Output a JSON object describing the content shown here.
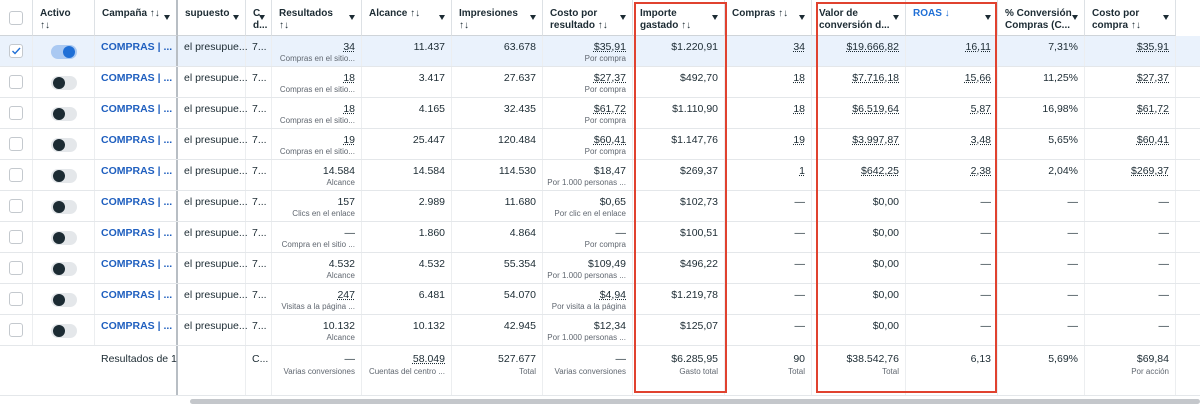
{
  "table": {
    "header": {
      "columns": [
        {
          "lines": [
            "Activo",
            "↑↓"
          ]
        },
        {
          "lines": [
            "Campaña ↑↓"
          ]
        },
        {
          "lines": [
            "supuesto"
          ]
        },
        {
          "lines": [
            "C",
            "d..."
          ]
        },
        {
          "lines": [
            "Resultados",
            "↑↓"
          ]
        },
        {
          "lines": [
            "Alcance ↑↓"
          ]
        },
        {
          "lines": [
            "Impresiones",
            "↑↓"
          ]
        },
        {
          "lines": [
            "Costo por",
            "resultado ↑↓"
          ]
        },
        {
          "lines": [
            "Importe",
            "gastado ↑↓"
          ]
        },
        {
          "lines": [
            "Compras ↑↓"
          ]
        },
        {
          "lines": [
            "Valor de",
            "conversión d..."
          ]
        },
        {
          "lines": [
            "ROAS ↓"
          ]
        },
        {
          "lines": [
            "% Conversión",
            "Compras (C..."
          ]
        },
        {
          "lines": [
            "Costo por",
            "compra ↑↓"
          ]
        }
      ]
    },
    "rows": [
      {
        "selected": true,
        "active": true,
        "campaign": "COMPRAS | ...",
        "budget": "el presupue...",
        "bid": "7...",
        "results": "34",
        "results_note": "Compras en el sitio...",
        "reach": "11.437",
        "impressions": "63.678",
        "cost_per_result": "$35,91",
        "cost_note": "Por compra",
        "spent": "$1.220,91",
        "purchases": "34",
        "conv_value": "$19.666,82",
        "roas": "16,11",
        "conv_rate": "7,31%",
        "cost_per_purchase": "$35,91"
      },
      {
        "selected": false,
        "active": false,
        "campaign": "COMPRAS | ...",
        "budget": "el presupue...",
        "bid": "7...",
        "results": "18",
        "results_note": "Compras en el sitio...",
        "reach": "3.417",
        "impressions": "27.637",
        "cost_per_result": "$27,37",
        "cost_note": "Por compra",
        "spent": "$492,70",
        "purchases": "18",
        "conv_value": "$7.716,18",
        "roas": "15,66",
        "conv_rate": "11,25%",
        "cost_per_purchase": "$27,37"
      },
      {
        "selected": false,
        "active": false,
        "campaign": "COMPRAS | ...",
        "budget": "el presupue...",
        "bid": "7...",
        "results": "18",
        "results_note": "Compras en el sitio...",
        "reach": "4.165",
        "impressions": "32.435",
        "cost_per_result": "$61,72",
        "cost_note": "Por compra",
        "spent": "$1.110,90",
        "purchases": "18",
        "conv_value": "$6.519,64",
        "roas": "5,87",
        "conv_rate": "16,98%",
        "cost_per_purchase": "$61,72"
      },
      {
        "selected": false,
        "active": false,
        "campaign": "COMPRAS | ...",
        "budget": "el presupue...",
        "bid": "7...",
        "results": "19",
        "results_note": "Compras en el sitio...",
        "reach": "25.447",
        "impressions": "120.484",
        "cost_per_result": "$60,41",
        "cost_note": "Por compra",
        "spent": "$1.147,76",
        "purchases": "19",
        "conv_value": "$3.997,87",
        "roas": "3,48",
        "conv_rate": "5,65%",
        "cost_per_purchase": "$60,41"
      },
      {
        "selected": false,
        "active": false,
        "campaign": "COMPRAS | ...",
        "budget": "el presupue...",
        "bid": "7...",
        "results": "14.584",
        "results_note": "Alcance",
        "reach": "14.584",
        "impressions": "114.530",
        "cost_per_result": "$18,47",
        "cost_note": "Por 1.000 personas ...",
        "spent": "$269,37",
        "purchases": "1",
        "conv_value": "$642,25",
        "roas": "2,38",
        "conv_rate": "2,04%",
        "cost_per_purchase": "$269,37"
      },
      {
        "selected": false,
        "active": false,
        "campaign": "COMPRAS | ...",
        "budget": "el presupue...",
        "bid": "7...",
        "results": "157",
        "results_note": "Clics en el enlace",
        "reach": "2.989",
        "impressions": "11.680",
        "cost_per_result": "$0,65",
        "cost_note": "Por clic en el enlace",
        "spent": "$102,73",
        "purchases": "—",
        "conv_value": "$0,00",
        "roas": "—",
        "conv_rate": "—",
        "cost_per_purchase": "—"
      },
      {
        "selected": false,
        "active": false,
        "campaign": "COMPRAS | ...",
        "budget": "el presupue...",
        "bid": "7...",
        "results": "—",
        "results_note": "Compra en el sitio ...",
        "reach": "1.860",
        "impressions": "4.864",
        "cost_per_result": "—",
        "cost_note": "Por compra",
        "spent": "$100,51",
        "purchases": "—",
        "conv_value": "$0,00",
        "roas": "—",
        "conv_rate": "—",
        "cost_per_purchase": "—"
      },
      {
        "selected": false,
        "active": false,
        "campaign": "COMPRAS | ...",
        "budget": "el presupue...",
        "bid": "7...",
        "results": "4.532",
        "results_note": "Alcance",
        "reach": "4.532",
        "impressions": "55.354",
        "cost_per_result": "$109,49",
        "cost_note": "Por 1.000 personas ...",
        "spent": "$496,22",
        "purchases": "—",
        "conv_value": "$0,00",
        "roas": "—",
        "conv_rate": "—",
        "cost_per_purchase": "—"
      },
      {
        "selected": false,
        "active": false,
        "campaign": "COMPRAS | ...",
        "budget": "el presupue...",
        "bid": "7...",
        "results": "247",
        "results_note": "Visitas a la página ...",
        "reach": "6.481",
        "impressions": "54.070",
        "cost_per_result": "$4,94",
        "cost_note": "Por visita a la página",
        "spent": "$1.219,78",
        "purchases": "—",
        "conv_value": "$0,00",
        "roas": "—",
        "conv_rate": "—",
        "cost_per_purchase": "—"
      },
      {
        "selected": false,
        "active": false,
        "campaign": "COMPRAS | ...",
        "budget": "el presupue...",
        "bid": "7...",
        "results": "10.132",
        "results_note": "Alcance",
        "reach": "10.132",
        "impressions": "42.945",
        "cost_per_result": "$12,34",
        "cost_note": "Por 1.000 personas ...",
        "spent": "$125,07",
        "purchases": "—",
        "conv_value": "$0,00",
        "roas": "—",
        "conv_rate": "—",
        "cost_per_purchase": "—"
      }
    ],
    "total": {
      "label": "Resultados de 1",
      "bid": "C...",
      "results": "—",
      "results_note": "Varias conversiones",
      "reach": "58.049",
      "reach_note": "Cuentas del centro ...",
      "impressions": "527.677",
      "impressions_note": "Total",
      "cost_per_result": "—",
      "cost_note": "Varias conversiones",
      "spent": "$6.285,95",
      "spent_note": "Gasto total",
      "purchases": "90",
      "purchases_note": "Total",
      "conv_value": "$38.542,76",
      "conv_value_note": "Total",
      "roas": "6,13",
      "conv_rate": "5,69%",
      "cost_per_purchase": "$69,84",
      "cost_per_purchase_note": "Por acción"
    }
  }
}
